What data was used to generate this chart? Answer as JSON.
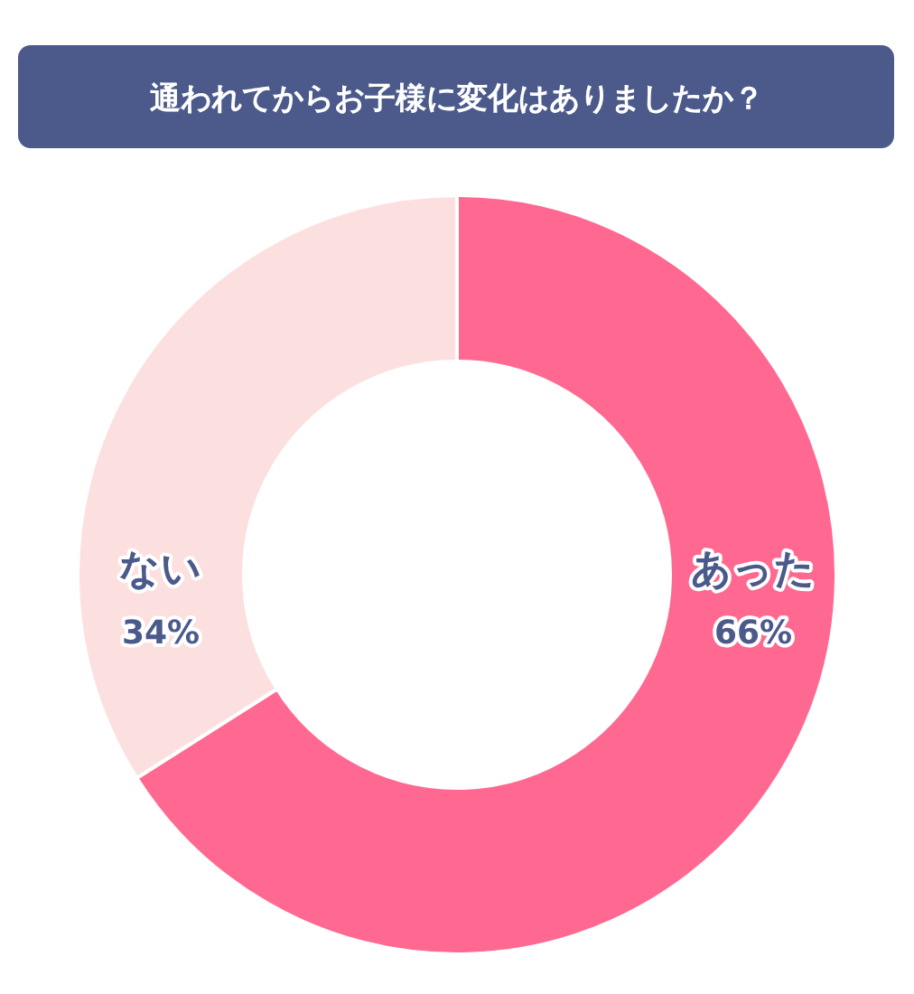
{
  "chart_data": {
    "type": "donut",
    "title": "通われてからお子様に変化はありましたか？",
    "categories": [
      "あった",
      "ない"
    ],
    "values": [
      66,
      34
    ],
    "colors": [
      "#ff6991",
      "#fce0e0"
    ],
    "value_labels": [
      "66%",
      "34%"
    ],
    "legend": false
  }
}
